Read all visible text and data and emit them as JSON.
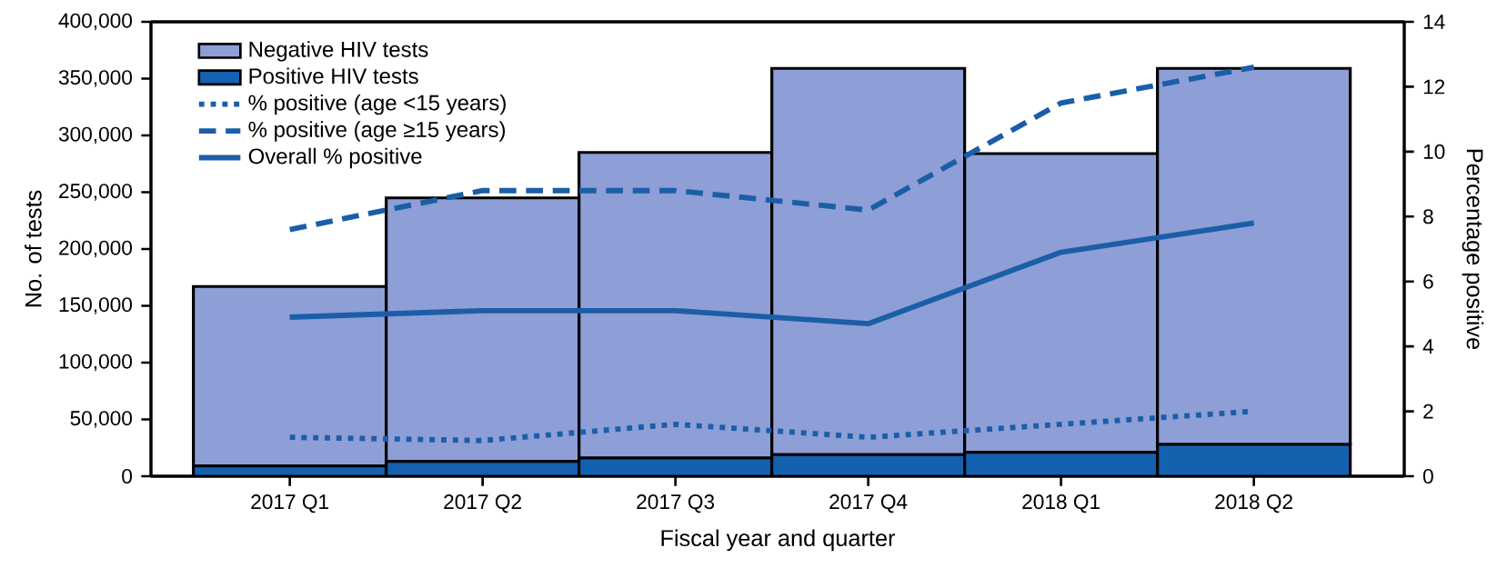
{
  "chart_data": {
    "type": "bar",
    "stacked": true,
    "categories": [
      "2017 Q1",
      "2017 Q2",
      "2017 Q3",
      "2017 Q4",
      "2018 Q1",
      "2018 Q2"
    ],
    "series": [
      {
        "name": "Positive HIV tests",
        "color": "#1461b0",
        "values": [
          9000,
          13000,
          16000,
          19000,
          21000,
          28000
        ]
      },
      {
        "name": "Negative HIV tests",
        "color": "#8e9ed6",
        "values": [
          158000,
          232000,
          269000,
          340000,
          263000,
          331000
        ]
      },
      {
        "name": "% positive (age <15 years)",
        "type": "line",
        "axis": "y2",
        "line_style": "dotted",
        "color": "#1b5ea8",
        "values": [
          1.2,
          1.1,
          1.6,
          1.2,
          1.6,
          2.0
        ]
      },
      {
        "name": "% positive (age ≥15 years)",
        "type": "line",
        "axis": "y2",
        "line_style": "dashed",
        "color": "#1b5ea8",
        "values": [
          7.6,
          8.8,
          8.8,
          8.2,
          11.5,
          12.6
        ]
      },
      {
        "name": "Overall % positive",
        "type": "line",
        "axis": "y2",
        "line_style": "solid",
        "color": "#1b5ea8",
        "values": [
          4.9,
          5.1,
          5.1,
          4.7,
          6.9,
          7.8
        ]
      }
    ],
    "xlabel": "Fiscal year and quarter",
    "ylabel": "No. of tests",
    "y2label": "Percentage positive",
    "ylim": [
      0,
      400000
    ],
    "yticks": [
      0,
      {
        "value": 50000,
        "label": "50,000"
      },
      {
        "value": 100000,
        "label": "100,000"
      },
      {
        "value": 150000,
        "label": "150,000"
      },
      {
        "value": 200000,
        "label": "200,000"
      },
      {
        "value": 250000,
        "label": "250,000"
      },
      {
        "value": 300000,
        "label": "300,000"
      },
      {
        "value": 350000,
        "label": "350,000"
      },
      {
        "value": 400000,
        "label": "400,000"
      }
    ],
    "y2lim": [
      0,
      14
    ],
    "y2ticks": [
      0,
      2,
      4,
      6,
      8,
      10,
      12,
      14
    ],
    "legend": "top left",
    "grid": false
  }
}
